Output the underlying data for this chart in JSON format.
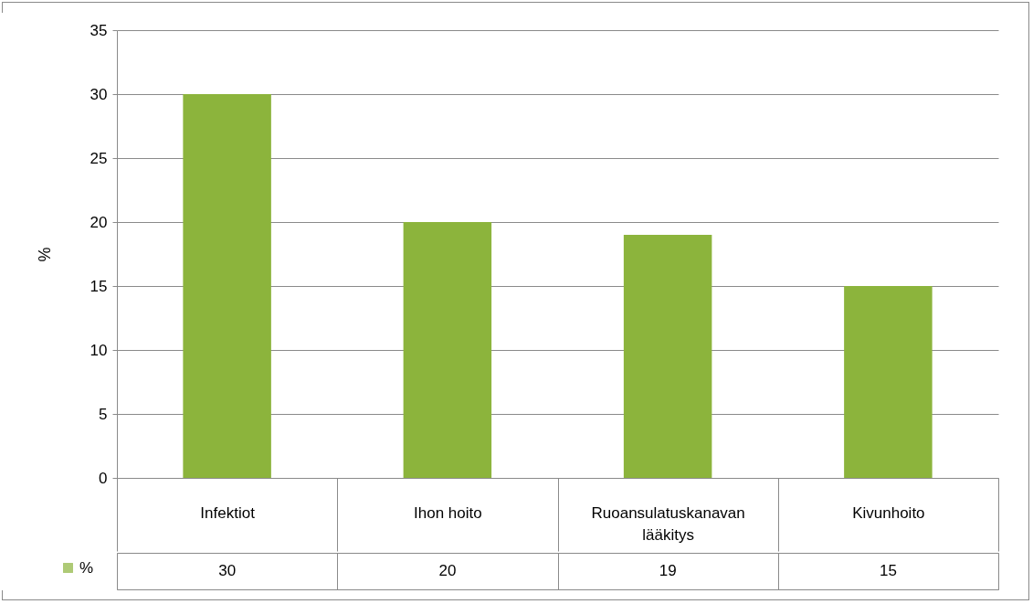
{
  "chart_data": {
    "type": "bar",
    "ylabel": "%",
    "categories": [
      "Infektiot",
      "Ihon hoito",
      "Ruoansulatuskanavan lääkitys",
      "Kivunhoito"
    ],
    "series": [
      {
        "name": "%",
        "color": "#8cb43c",
        "values": [
          30,
          20,
          19,
          15
        ]
      }
    ],
    "ylim": [
      0,
      35
    ],
    "yticks": [
      0,
      5,
      10,
      15,
      20,
      25,
      30,
      35
    ],
    "grid": "y",
    "data_labels": true
  }
}
